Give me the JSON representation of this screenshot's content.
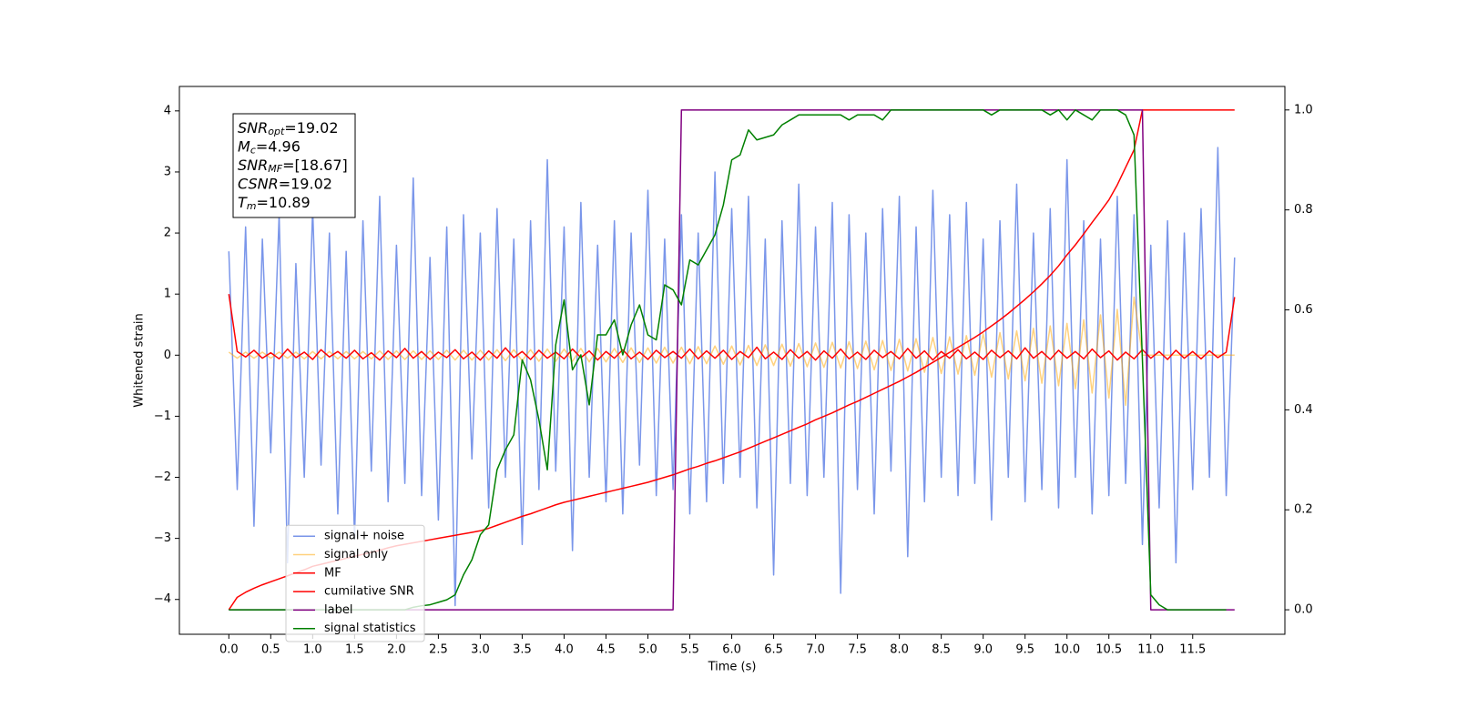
{
  "chart_data": {
    "type": "line",
    "xlabel": "Time (s)",
    "ylabel": "Whitened strain",
    "xlim": [
      -0.59,
      12.6
    ],
    "ylim": [
      -4.57,
      4.4
    ],
    "y2lim": [
      -0.049,
      1.047
    ],
    "xticks": [
      {
        "value": 0,
        "label": "0.0"
      },
      0.5,
      {
        "value": 1,
        "label": "1.0"
      },
      1.5,
      {
        "value": 2,
        "label": "2.0"
      },
      2.5,
      {
        "value": 3,
        "label": "3.0"
      },
      3.5,
      {
        "value": 4,
        "label": "4.0"
      },
      4.5,
      {
        "value": 5,
        "label": "5.0"
      },
      5.5,
      {
        "value": 6,
        "label": "6.0"
      },
      6.5,
      {
        "value": 7,
        "label": "7.0"
      },
      7.5,
      {
        "value": 8,
        "label": "8.0"
      },
      8.5,
      {
        "value": 9,
        "label": "9.0"
      },
      9.5,
      {
        "value": 10,
        "label": "10.0"
      },
      10.5,
      {
        "value": 11,
        "label": "11.0"
      },
      11.5
    ],
    "yticks": [
      {
        "value": -4,
        "label": "−4"
      },
      {
        "value": -3,
        "label": "−3"
      },
      {
        "value": -2,
        "label": "−2"
      },
      {
        "value": -1,
        "label": "−1"
      },
      0,
      1,
      2,
      3,
      4
    ],
    "y2ticks": [
      {
        "value": 0,
        "label": "0.0"
      },
      0.2,
      0.4,
      0.6,
      0.8,
      {
        "value": 1,
        "label": "1.0"
      }
    ],
    "legend": "lower left",
    "stats_box": [
      {
        "symbol": "SNR",
        "sub": "opt",
        "text": "=19.02"
      },
      {
        "symbol": "M",
        "sub": "c",
        "text": "=4.96"
      },
      {
        "symbol": "SNR",
        "sub": "MF",
        "text": "=[18.67]"
      },
      {
        "symbol": "CSNR",
        "text": "=19.02"
      },
      {
        "symbol": "T",
        "sub": "m",
        "text": "=10.89"
      }
    ],
    "x": [
      0,
      0.1,
      0.2,
      0.3,
      0.4,
      0.5,
      0.6,
      0.7,
      0.8,
      0.9,
      1,
      1.1,
      1.2,
      1.3,
      1.4,
      1.5,
      1.6,
      1.7,
      1.8,
      1.9,
      2,
      2.1,
      2.2,
      2.3,
      2.4,
      2.5,
      2.6,
      2.7,
      2.8,
      2.9,
      3,
      3.1,
      3.2,
      3.3,
      3.4,
      3.5,
      3.6,
      3.7,
      3.8,
      3.9,
      4,
      4.1,
      4.2,
      4.3,
      4.4,
      4.5,
      4.6,
      4.7,
      4.8,
      4.9,
      5,
      5.1,
      5.2,
      5.3,
      5.4,
      5.5,
      5.6,
      5.7,
      5.8,
      5.9,
      6,
      6.1,
      6.2,
      6.3,
      6.4,
      6.5,
      6.6,
      6.7,
      6.8,
      6.9,
      7,
      7.1,
      7.2,
      7.3,
      7.4,
      7.5,
      7.6,
      7.7,
      7.8,
      7.9,
      8,
      8.1,
      8.2,
      8.3,
      8.4,
      8.5,
      8.6,
      8.7,
      8.8,
      8.9,
      9,
      9.1,
      9.2,
      9.3,
      9.4,
      9.5,
      9.6,
      9.7,
      9.8,
      9.9,
      10,
      10.1,
      10.2,
      10.3,
      10.4,
      10.5,
      10.6,
      10.7,
      10.8,
      10.9,
      11,
      11.1,
      11.2,
      11.3,
      11.4,
      11.5,
      11.6,
      11.7,
      11.8,
      11.9,
      12
    ],
    "series": [
      {
        "name": "signal+ noise",
        "color": "#4169e1",
        "alpha": 0.7,
        "values": [
          1.7,
          -2.2,
          2.1,
          -2.8,
          1.9,
          -1.6,
          2.3,
          -3.4,
          1.5,
          -2.0,
          2.4,
          -1.8,
          2.0,
          -2.6,
          1.7,
          -3.0,
          2.2,
          -1.9,
          2.6,
          -2.4,
          1.8,
          -2.1,
          2.9,
          -2.3,
          1.6,
          -2.7,
          2.1,
          -4.1,
          2.3,
          -1.7,
          2.0,
          -2.5,
          2.4,
          -2.0,
          1.9,
          -3.1,
          2.2,
          -2.2,
          3.2,
          -1.9,
          2.1,
          -3.2,
          2.5,
          -2.0,
          1.8,
          -2.4,
          2.2,
          -2.6,
          2.0,
          -1.8,
          2.7,
          -2.3,
          1.9,
          -2.2,
          2.3,
          -2.6,
          2.0,
          -2.4,
          3.0,
          -2.1,
          2.4,
          -2.0,
          2.6,
          -2.5,
          1.9,
          -3.6,
          2.2,
          -2.1,
          2.8,
          -2.3,
          2.1,
          -2.0,
          2.5,
          -3.9,
          2.3,
          -2.2,
          2.0,
          -2.6,
          2.4,
          -1.9,
          2.6,
          -3.3,
          2.1,
          -2.4,
          2.7,
          -2.0,
          2.3,
          -2.3,
          2.5,
          -2.1,
          1.9,
          -2.7,
          2.2,
          -2.0,
          2.8,
          -2.4,
          2.0,
          -2.2,
          2.4,
          -2.5,
          3.2,
          -2.0,
          2.2,
          -2.6,
          1.9,
          -2.3,
          2.6,
          -2.1,
          2.3,
          -3.1,
          1.8,
          -2.5,
          2.2,
          -3.4,
          2.0,
          -2.2,
          2.4,
          -2.0,
          3.4,
          -2.3,
          1.6
        ]
      },
      {
        "name": "signal only",
        "color": "#ffa500",
        "alpha": 0.5,
        "values": [
          0.05,
          -0.05,
          0.05,
          -0.05,
          0.05,
          -0.05,
          0.05,
          -0.05,
          0.05,
          -0.06,
          0.06,
          -0.06,
          0.06,
          -0.06,
          0.06,
          -0.06,
          0.06,
          -0.06,
          0.07,
          -0.07,
          0.07,
          -0.07,
          0.07,
          -0.07,
          0.07,
          -0.07,
          0.08,
          -0.08,
          0.08,
          -0.08,
          0.08,
          -0.08,
          0.09,
          -0.09,
          0.09,
          -0.09,
          0.09,
          -0.1,
          0.1,
          -0.1,
          0.1,
          -0.1,
          0.11,
          -0.11,
          0.11,
          -0.11,
          0.11,
          -0.12,
          0.12,
          -0.12,
          0.12,
          -0.13,
          0.13,
          -0.13,
          0.13,
          -0.14,
          0.14,
          -0.14,
          0.15,
          -0.15,
          0.15,
          -0.16,
          0.16,
          -0.17,
          0.17,
          -0.17,
          0.18,
          -0.18,
          0.19,
          -0.19,
          0.2,
          -0.2,
          0.21,
          -0.21,
          0.22,
          -0.22,
          0.23,
          -0.24,
          0.24,
          -0.25,
          0.26,
          -0.26,
          0.27,
          -0.28,
          0.29,
          -0.3,
          0.3,
          -0.31,
          0.32,
          -0.33,
          0.35,
          -0.36,
          0.37,
          -0.39,
          0.4,
          -0.42,
          0.44,
          -0.46,
          0.48,
          -0.5,
          0.52,
          -0.55,
          0.58,
          -0.62,
          0.66,
          -0.7,
          0.75,
          -0.82,
          0.95,
          0,
          0,
          0,
          0,
          0,
          0,
          0,
          0,
          0,
          0,
          0,
          0
        ]
      },
      {
        "name": "MF",
        "color": "#ff0000",
        "values": [
          1.0,
          0.06,
          -0.03,
          0.08,
          -0.05,
          0.04,
          -0.06,
          0.1,
          -0.04,
          0.05,
          -0.07,
          0.09,
          -0.03,
          0.06,
          -0.05,
          0.08,
          -0.06,
          0.04,
          -0.08,
          0.07,
          -0.04,
          0.11,
          -0.05,
          0.06,
          -0.07,
          0.05,
          -0.04,
          0.09,
          -0.06,
          0.05,
          -0.08,
          0.07,
          -0.05,
          0.12,
          -0.04,
          0.06,
          -0.07,
          0.08,
          -0.05,
          0.05,
          -0.06,
          0.1,
          -0.04,
          0.07,
          -0.08,
          0.06,
          -0.05,
          0.09,
          -0.06,
          0.05,
          -0.07,
          0.08,
          -0.04,
          0.06,
          -0.05,
          0.1,
          -0.06,
          0.07,
          -0.05,
          0.08,
          -0.07,
          0.06,
          -0.04,
          0.13,
          -0.06,
          0.05,
          -0.07,
          0.09,
          -0.05,
          0.06,
          -0.08,
          0.07,
          -0.05,
          0.1,
          -0.06,
          0.05,
          -0.07,
          0.08,
          -0.04,
          0.06,
          -0.06,
          0.11,
          -0.05,
          0.07,
          -0.08,
          0.06,
          -0.05,
          0.09,
          -0.06,
          0.05,
          -0.07,
          0.08,
          -0.04,
          0.07,
          -0.06,
          0.12,
          -0.05,
          0.06,
          -0.07,
          0.08,
          -0.05,
          0.06,
          -0.06,
          0.1,
          -0.04,
          0.07,
          -0.08,
          0.05,
          -0.06,
          0.09,
          -0.05,
          0.06,
          -0.07,
          0.08,
          -0.05,
          0.06,
          -0.06,
          0.07,
          -0.04,
          0.05,
          0.95
        ]
      },
      {
        "name": "cumilative SNR",
        "color": "#ff0000",
        "axis": "y2",
        "values": [
          0,
          0.025,
          0.035,
          0.043,
          0.05,
          0.056,
          0.062,
          0.068,
          0.074,
          0.08,
          0.087,
          0.091,
          0.095,
          0.099,
          0.103,
          0.107,
          0.111,
          0.115,
          0.119,
          0.124,
          0.128,
          0.131,
          0.134,
          0.137,
          0.14,
          0.143,
          0.146,
          0.149,
          0.152,
          0.155,
          0.158,
          0.163,
          0.169,
          0.175,
          0.181,
          0.187,
          0.192,
          0.198,
          0.204,
          0.21,
          0.215,
          0.219,
          0.223,
          0.227,
          0.231,
          0.235,
          0.239,
          0.243,
          0.247,
          0.251,
          0.255,
          0.26,
          0.265,
          0.27,
          0.276,
          0.282,
          0.287,
          0.293,
          0.298,
          0.304,
          0.31,
          0.316,
          0.323,
          0.33,
          0.337,
          0.344,
          0.351,
          0.358,
          0.365,
          0.372,
          0.38,
          0.387,
          0.394,
          0.402,
          0.41,
          0.417,
          0.425,
          0.433,
          0.441,
          0.449,
          0.457,
          0.466,
          0.475,
          0.485,
          0.495,
          0.505,
          0.515,
          0.525,
          0.535,
          0.545,
          0.556,
          0.568,
          0.58,
          0.593,
          0.607,
          0.621,
          0.636,
          0.652,
          0.669,
          0.688,
          0.71,
          0.73,
          0.752,
          0.775,
          0.797,
          0.82,
          0.85,
          0.885,
          0.92,
          1.0,
          1.0,
          1.0,
          1.0,
          1.0,
          1.0,
          1.0,
          1.0,
          1.0,
          1.0,
          1.0,
          1.0
        ]
      },
      {
        "name": "label",
        "color": "#800080",
        "axis": "y2",
        "values": [
          0,
          0,
          0,
          0,
          0,
          0,
          0,
          0,
          0,
          0,
          0,
          0,
          0,
          0,
          0,
          0,
          0,
          0,
          0,
          0,
          0,
          0,
          0,
          0,
          0,
          0,
          0,
          0,
          0,
          0,
          0,
          0,
          0,
          0,
          0,
          0,
          0,
          0,
          0,
          0,
          0,
          0,
          0,
          0,
          0,
          0,
          0,
          0,
          0,
          0,
          0,
          0,
          0,
          0,
          1,
          1,
          1,
          1,
          1,
          1,
          1,
          1,
          1,
          1,
          1,
          1,
          1,
          1,
          1,
          1,
          1,
          1,
          1,
          1,
          1,
          1,
          1,
          1,
          1,
          1,
          1,
          1,
          1,
          1,
          1,
          1,
          1,
          1,
          1,
          1,
          1,
          1,
          1,
          1,
          1,
          1,
          1,
          1,
          1,
          1,
          1,
          1,
          1,
          1,
          1,
          1,
          1,
          1,
          1,
          1,
          0,
          0,
          0,
          0,
          0,
          0,
          0,
          0,
          0,
          0,
          0
        ]
      },
      {
        "name": "signal statistics",
        "color": "#008000",
        "axis": "y2",
        "values": [
          0,
          0,
          0,
          0,
          0,
          0,
          0,
          0,
          0,
          0,
          0,
          0,
          0,
          0,
          0,
          0,
          0,
          0,
          0,
          0,
          0,
          0,
          0.005,
          0.008,
          0.01,
          0.015,
          0.02,
          0.03,
          0.07,
          0.1,
          0.15,
          0.17,
          0.28,
          0.32,
          0.35,
          0.5,
          0.46,
          0.38,
          0.28,
          0.53,
          0.62,
          0.48,
          0.51,
          0.41,
          0.55,
          0.55,
          0.58,
          0.51,
          0.57,
          0.61,
          0.55,
          0.54,
          0.65,
          0.64,
          0.61,
          0.7,
          0.69,
          0.72,
          0.75,
          0.81,
          0.9,
          0.91,
          0.96,
          0.94,
          0.945,
          0.95,
          0.97,
          0.98,
          0.99,
          0.99,
          0.99,
          0.99,
          0.99,
          0.99,
          0.98,
          0.99,
          0.99,
          0.99,
          0.98,
          1.0,
          1.0,
          1.0,
          1.0,
          1.0,
          1.0,
          1.0,
          1.0,
          1.0,
          1.0,
          1.0,
          1.0,
          0.99,
          1.0,
          1.0,
          1.0,
          1.0,
          1.0,
          1.0,
          0.99,
          1.0,
          0.98,
          1.0,
          0.99,
          0.98,
          1.0,
          1.0,
          1.0,
          0.99,
          0.95,
          0.5,
          0.03,
          0.01,
          0,
          0,
          0,
          0,
          0,
          0,
          0,
          0,
          null
        ]
      }
    ]
  }
}
